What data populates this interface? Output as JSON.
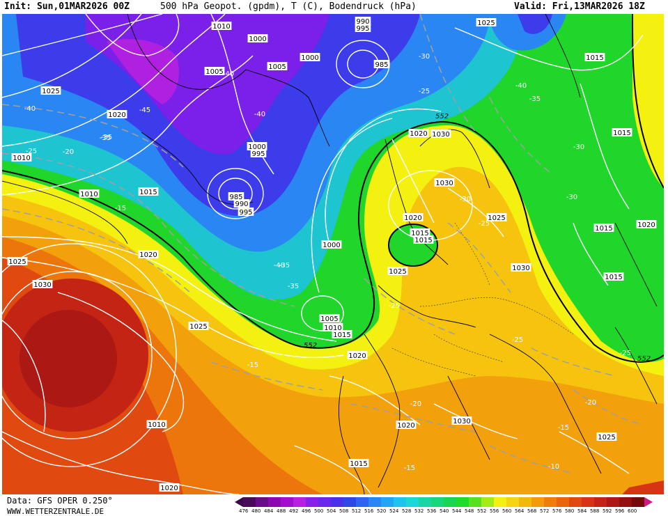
{
  "header": {
    "init": "Init: Sun,01MAR2026 00Z",
    "title": "500 hPa Geopot. (gpdm), T (C), Bodendruck (hPa)",
    "valid": "Valid: Fri,13MAR2026 18Z"
  },
  "footer": {
    "data_source": "Data: GFS OPER 0.250°",
    "website": "WWW.WETTERZENTRALE.DE"
  },
  "legend": {
    "values": [
      "476",
      "480",
      "484",
      "488",
      "492",
      "496",
      "500",
      "504",
      "508",
      "512",
      "516",
      "520",
      "524",
      "528",
      "532",
      "536",
      "540",
      "544",
      "548",
      "552",
      "556",
      "560",
      "564",
      "568",
      "572",
      "576",
      "580",
      "584",
      "588",
      "592",
      "596",
      "600"
    ],
    "colors": [
      "#4a0a5a",
      "#6b0a8a",
      "#8a0ab0",
      "#a010cc",
      "#b820e0",
      "#8a20e8",
      "#6a28ea",
      "#4a30e6",
      "#2e48e8",
      "#2a66ee",
      "#2a86f2",
      "#22a6f4",
      "#1ec4ee",
      "#1cd6d8",
      "#1ad6a4",
      "#1ad67a",
      "#18d650",
      "#20dc2a",
      "#58e020",
      "#a4ec18",
      "#f4f010",
      "#f6d410",
      "#f4b80c",
      "#f29a0c",
      "#ee7e0c",
      "#e8640e",
      "#e04a10",
      "#d63414",
      "#c42414",
      "#ac1814",
      "#921010",
      "#760a0a"
    ]
  },
  "map": {
    "contour_value_552": "552",
    "pressure_labels": [
      "1010",
      "1000",
      "995",
      "990",
      "985",
      "1005",
      "1025",
      "1020",
      "1015",
      "1030",
      "1000",
      "1010"
    ],
    "pressure_label_list": [
      "1010",
      "1000",
      "990",
      "995",
      "985",
      "1025",
      "1005",
      "1000",
      "1020",
      "1015",
      "1010",
      "1005",
      "1000",
      "995",
      "985",
      "990",
      "995",
      "1015",
      "1010",
      "1025",
      "1030",
      "1020",
      "1015",
      "1000",
      "1005",
      "1010",
      "1015",
      "1020",
      "1025",
      "1030",
      "1025",
      "1030",
      "1020",
      "1025",
      "1015",
      "1025",
      "1030",
      "1015",
      "1020",
      "1015",
      "1010",
      "1020",
      "1015",
      "1030",
      "1025",
      "1015",
      "1020",
      "1020"
    ],
    "temperature_labels": [
      "-40",
      "-45",
      "-35",
      "-30",
      "-25",
      "-20",
      "-15",
      "-10"
    ],
    "temperature_label_list": [
      "-40",
      "-45",
      "-40",
      "-40",
      "-35",
      "-35",
      "-40",
      "-35",
      "-30",
      "-25",
      "-40",
      "-35",
      "-30",
      "-30",
      "-30",
      "-25",
      "-25",
      "-25",
      "-15",
      "-15",
      "-20",
      "-20",
      "-15",
      "-15",
      "-10",
      "-25",
      "-25",
      "-20",
      "-35"
    ]
  }
}
